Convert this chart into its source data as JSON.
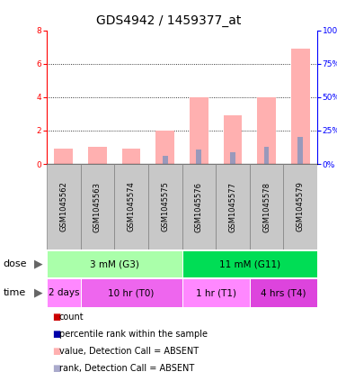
{
  "title": "GDS4942 / 1459377_at",
  "samples": [
    "GSM1045562",
    "GSM1045563",
    "GSM1045574",
    "GSM1045575",
    "GSM1045576",
    "GSM1045577",
    "GSM1045578",
    "GSM1045579"
  ],
  "pink_bars": [
    0.9,
    1.0,
    0.9,
    2.0,
    4.0,
    2.9,
    4.0,
    6.9
  ],
  "blue_bars": [
    0.0,
    0.0,
    0.0,
    0.5,
    0.85,
    0.7,
    1.0,
    1.6
  ],
  "ylim": [
    0,
    8
  ],
  "yticks_left": [
    0,
    2,
    4,
    6,
    8
  ],
  "yticks_right": [
    0,
    25,
    50,
    75,
    100
  ],
  "ylim_right": [
    0,
    100
  ],
  "bar_width": 0.55,
  "pink_color": "#FFB0B0",
  "blue_color": "#9999BB",
  "red_color": "#CC0000",
  "dark_blue_color": "#0000AA",
  "dose_row": [
    {
      "label": "3 mM (G3)",
      "start": 0,
      "end": 4,
      "color": "#AAFFAA"
    },
    {
      "label": "11 mM (G11)",
      "start": 4,
      "end": 8,
      "color": "#00DD55"
    }
  ],
  "time_row": [
    {
      "label": "2 days",
      "start": 0,
      "end": 1,
      "color": "#FF88FF"
    },
    {
      "label": "10 hr (T0)",
      "start": 1,
      "end": 4,
      "color": "#EE66EE"
    },
    {
      "label": "1 hr (T1)",
      "start": 4,
      "end": 6,
      "color": "#FF88FF"
    },
    {
      "label": "4 hrs (T4)",
      "start": 6,
      "end": 8,
      "color": "#DD44DD"
    }
  ],
  "dose_label": "dose",
  "time_label": "time",
  "legend_items": [
    {
      "label": "count",
      "color": "#CC0000"
    },
    {
      "label": "percentile rank within the sample",
      "color": "#0000AA"
    },
    {
      "label": "value, Detection Call = ABSENT",
      "color": "#FFB0B0"
    },
    {
      "label": "rank, Detection Call = ABSENT",
      "color": "#AAAACC"
    }
  ],
  "grid_color": "black",
  "title_fontsize": 10,
  "tick_fontsize": 6.5,
  "sample_fontsize": 6,
  "row_fontsize": 7.5,
  "legend_fontsize": 7
}
